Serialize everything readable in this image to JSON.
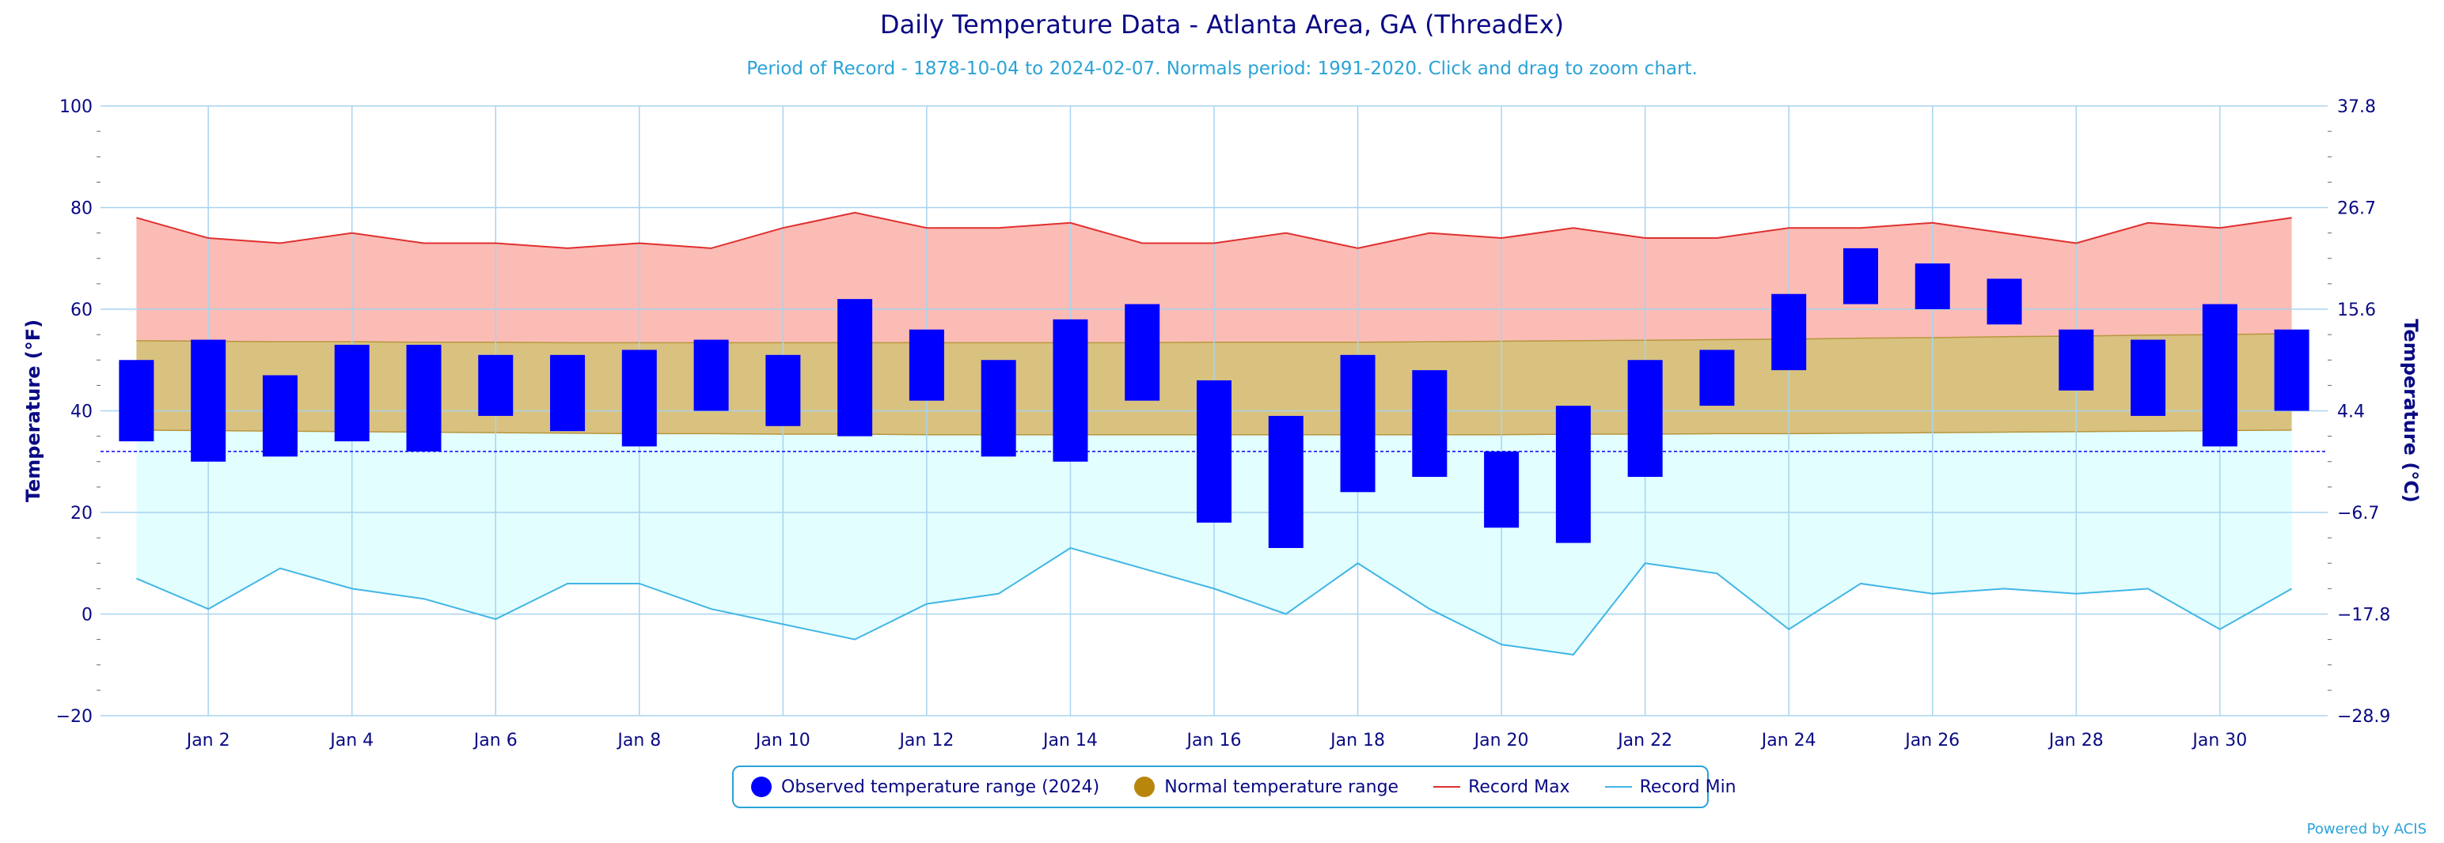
{
  "title": "Daily Temperature Data - Atlanta Area, GA (ThreadEx)",
  "subtitle": "Period of Record - 1878-10-04 to 2024-02-07. Normals period: 1991-2020. Click and drag to zoom chart.",
  "credits": "Powered by ACIS",
  "colors": {
    "observed": "#0000ff",
    "normal_dot": "#b8860b",
    "normal_fill": "#d9c27f",
    "record_max_line": "#e03030",
    "record_max_fill": "#fbbcb5",
    "record_min_line": "#41b6e6",
    "record_min_fill": "#e2fefe",
    "grid": "#a8d4ef",
    "axis_text": "#0a0a85",
    "freezing_line": "#0000ff"
  },
  "legend": [
    {
      "label": "Observed temperature range (2024)",
      "marker": "dot",
      "color_key": "observed"
    },
    {
      "label": "Normal temperature range",
      "marker": "dot",
      "color_key": "normal_dot"
    },
    {
      "label": "Record Max",
      "marker": "line",
      "color_key": "record_max_line"
    },
    {
      "label": "Record Min",
      "marker": "line",
      "color_key": "record_min_line"
    }
  ],
  "chart_data": {
    "type": "bar",
    "x": [
      1,
      2,
      3,
      4,
      5,
      6,
      7,
      8,
      9,
      10,
      11,
      12,
      13,
      14,
      15,
      16,
      17,
      18,
      19,
      20,
      21,
      22,
      23,
      24,
      25,
      26,
      27,
      28,
      29,
      30,
      31
    ],
    "xlabels": [
      "Jan 2",
      "Jan 4",
      "Jan 6",
      "Jan 8",
      "Jan 10",
      "Jan 12",
      "Jan 14",
      "Jan 16",
      "Jan 18",
      "Jan 20",
      "Jan 22",
      "Jan 24",
      "Jan 26",
      "Jan 28",
      "Jan 30"
    ],
    "xlabel_days": [
      2,
      4,
      6,
      8,
      10,
      12,
      14,
      16,
      18,
      20,
      22,
      24,
      26,
      28,
      30
    ],
    "ylabel": "Temperature (°F)",
    "ylabel_right": "Temperature (°C)",
    "ylim": [
      -20,
      100
    ],
    "yticks": [
      -20,
      0,
      20,
      40,
      60,
      80,
      100
    ],
    "yticks_right": [
      "-28.9",
      "-17.8",
      "-6.7",
      "4.4",
      "15.6",
      "26.7",
      "37.8"
    ],
    "freezing": 32,
    "series": [
      {
        "name": "Observed temperature range (2024)",
        "low": [
          34,
          30,
          31,
          34,
          32,
          39,
          36,
          33,
          40,
          37,
          35,
          42,
          31,
          30,
          42,
          18,
          13,
          24,
          27,
          17,
          14,
          27,
          41,
          48,
          61,
          60,
          57,
          44,
          39,
          33,
          40
        ],
        "high": [
          50,
          54,
          47,
          53,
          53,
          51,
          51,
          52,
          54,
          51,
          62,
          56,
          50,
          58,
          61,
          46,
          39,
          51,
          48,
          32,
          41,
          50,
          52,
          63,
          72,
          69,
          66,
          56,
          54,
          61,
          56
        ]
      },
      {
        "name": "Normal temperature range",
        "low": [
          36.2,
          36.1,
          36.0,
          35.9,
          35.8,
          35.7,
          35.6,
          35.5,
          35.5,
          35.4,
          35.4,
          35.3,
          35.3,
          35.3,
          35.3,
          35.3,
          35.3,
          35.3,
          35.3,
          35.3,
          35.4,
          35.4,
          35.5,
          35.5,
          35.6,
          35.7,
          35.8,
          35.9,
          36.0,
          36.1,
          36.2
        ],
        "high": [
          53.8,
          53.7,
          53.6,
          53.6,
          53.5,
          53.5,
          53.4,
          53.4,
          53.4,
          53.4,
          53.4,
          53.4,
          53.4,
          53.4,
          53.4,
          53.5,
          53.5,
          53.5,
          53.6,
          53.7,
          53.8,
          53.9,
          54.0,
          54.1,
          54.3,
          54.4,
          54.6,
          54.7,
          54.9,
          55.0,
          55.2
        ]
      },
      {
        "name": "Record Max",
        "values": [
          78,
          74,
          73,
          75,
          73,
          73,
          72,
          73,
          72,
          76,
          79,
          76,
          76,
          77,
          73,
          73,
          75,
          72,
          75,
          74,
          76,
          74,
          74,
          76,
          76,
          77,
          75,
          73,
          77,
          76,
          78
        ]
      },
      {
        "name": "Record Min",
        "values": [
          7,
          1,
          9,
          5,
          3,
          -1,
          6,
          6,
          1,
          -2,
          -5,
          2,
          4,
          13,
          9,
          5,
          0,
          10,
          1,
          -6,
          -8,
          10,
          8,
          -3,
          6,
          4,
          5,
          4,
          5,
          -3,
          5
        ]
      }
    ]
  }
}
